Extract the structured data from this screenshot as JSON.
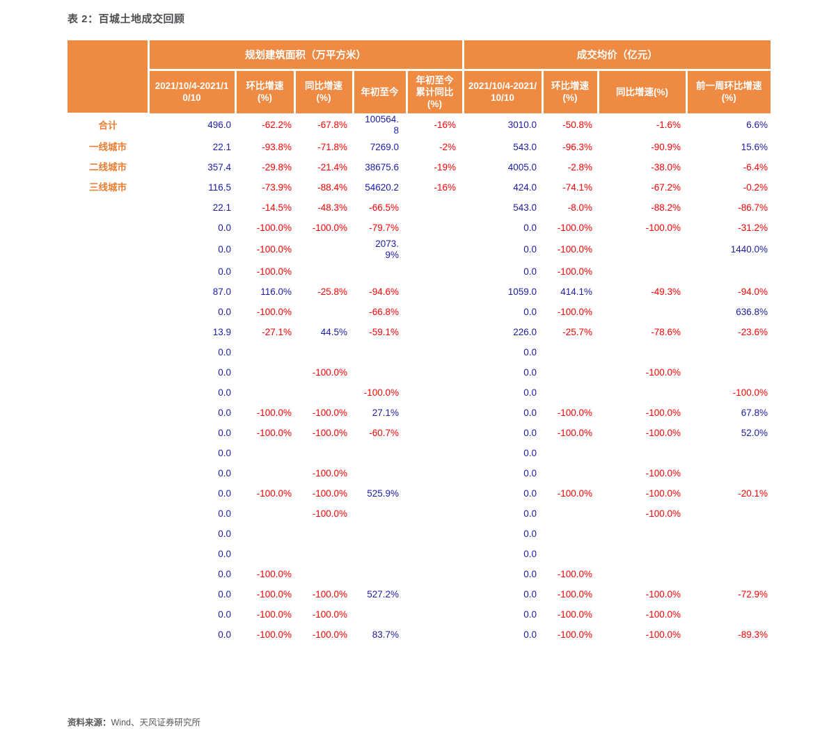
{
  "page": {
    "title": "表 2：百城土地成交回顾",
    "source_label": "资料来源：",
    "source_value": "Wind、天风证券研究所"
  },
  "colors": {
    "header_bg": "#ef8a43",
    "row_label_orange": "#ed7d31",
    "positive_blue": "#1b1ba8",
    "negative_red": "#ff0000",
    "title_gray": "#4d4d52",
    "source_gray": "#595959"
  },
  "table": {
    "col_groups": [
      {
        "label": "规划建筑面积（万平方米）",
        "span": 5
      },
      {
        "label": "成交均价（亿元）",
        "span": 4
      }
    ],
    "sub_headers": [
      "2021/10/4-2021/10/10",
      "环比增速(%)",
      "同比增速(%)",
      "年初至今",
      "年初至今累计同比(%)",
      "2021/10/4-2021/10/10",
      "环比增速(%)",
      "同比增速(%)",
      "前一周环比增速(%)"
    ],
    "rows": [
      {
        "label": "合计",
        "values": [
          "496.0",
          "-62.2%",
          "-67.8%",
          "100564.8",
          "-16%",
          "3010.0",
          "-50.8%",
          "-1.6%",
          "6.6%"
        ]
      },
      {
        "label": "一线城市",
        "values": [
          "22.1",
          "-93.8%",
          "-71.8%",
          "7269.0",
          "-2%",
          "543.0",
          "-96.3%",
          "-90.9%",
          "15.6%"
        ]
      },
      {
        "label": "二线城市",
        "values": [
          "357.4",
          "-29.8%",
          "-21.4%",
          "38675.6",
          "-19%",
          "4005.0",
          "-2.8%",
          "-38.0%",
          "-6.4%"
        ]
      },
      {
        "label": "三线城市",
        "values": [
          "116.5",
          "-73.9%",
          "-88.4%",
          "54620.2",
          "-16%",
          "424.0",
          "-74.1%",
          "-67.2%",
          "-0.2%"
        ]
      },
      {
        "label": "",
        "values": [
          "22.1",
          "-14.5%",
          "-48.3%",
          "-66.5%",
          "",
          "543.0",
          "-8.0%",
          "-88.2%",
          "-86.7%"
        ]
      },
      {
        "label": "",
        "values": [
          "0.0",
          "-100.0%",
          "-100.0%",
          "-79.7%",
          "",
          "0.0",
          "-100.0%",
          "-100.0%",
          "-31.2%"
        ]
      },
      {
        "label": "",
        "values": [
          "0.0",
          "-100.0%",
          "",
          "2073.9%",
          "",
          "0.0",
          "-100.0%",
          "",
          "1440.0%"
        ]
      },
      {
        "label": "",
        "values": [
          "0.0",
          "-100.0%",
          "",
          "",
          "",
          "0.0",
          "-100.0%",
          "",
          ""
        ]
      },
      {
        "label": "",
        "values": [
          "87.0",
          "116.0%",
          "-25.8%",
          "-94.6%",
          "",
          "1059.0",
          "414.1%",
          "-49.3%",
          "-94.0%"
        ]
      },
      {
        "label": "",
        "values": [
          "0.0",
          "-100.0%",
          "",
          "-66.8%",
          "",
          "0.0",
          "-100.0%",
          "",
          "636.8%"
        ]
      },
      {
        "label": "",
        "values": [
          "13.9",
          "-27.1%",
          "44.5%",
          "-59.1%",
          "",
          "226.0",
          "-25.7%",
          "-78.6%",
          "-23.6%"
        ]
      },
      {
        "label": "",
        "values": [
          "0.0",
          "",
          "",
          "",
          "",
          "0.0",
          "",
          "",
          ""
        ]
      },
      {
        "label": "",
        "values": [
          "0.0",
          "",
          "-100.0%",
          "",
          "",
          "0.0",
          "",
          "-100.0%",
          ""
        ]
      },
      {
        "label": "",
        "values": [
          "0.0",
          "",
          "",
          "-100.0%",
          "",
          "0.0",
          "",
          "",
          "-100.0%"
        ]
      },
      {
        "label": "",
        "values": [
          "0.0",
          "-100.0%",
          "-100.0%",
          "27.1%",
          "",
          "0.0",
          "-100.0%",
          "-100.0%",
          "67.8%"
        ]
      },
      {
        "label": "",
        "values": [
          "0.0",
          "-100.0%",
          "-100.0%",
          "-60.7%",
          "",
          "0.0",
          "-100.0%",
          "-100.0%",
          "52.0%"
        ]
      },
      {
        "label": "",
        "values": [
          "0.0",
          "",
          "",
          "",
          "",
          "0.0",
          "",
          "",
          ""
        ]
      },
      {
        "label": "",
        "values": [
          "0.0",
          "",
          "-100.0%",
          "",
          "",
          "0.0",
          "",
          "-100.0%",
          ""
        ]
      },
      {
        "label": "",
        "values": [
          "0.0",
          "-100.0%",
          "-100.0%",
          "525.9%",
          "",
          "0.0",
          "-100.0%",
          "-100.0%",
          "-20.1%"
        ]
      },
      {
        "label": "",
        "values": [
          "0.0",
          "",
          "-100.0%",
          "",
          "",
          "0.0",
          "",
          "-100.0%",
          ""
        ]
      },
      {
        "label": "",
        "values": [
          "0.0",
          "",
          "",
          "",
          "",
          "0.0",
          "",
          "",
          ""
        ]
      },
      {
        "label": "",
        "values": [
          "0.0",
          "",
          "",
          "",
          "",
          "0.0",
          "",
          "",
          ""
        ]
      },
      {
        "label": "",
        "values": [
          "0.0",
          "-100.0%",
          "",
          "",
          "",
          "0.0",
          "-100.0%",
          "",
          ""
        ]
      },
      {
        "label": "",
        "values": [
          "0.0",
          "-100.0%",
          "-100.0%",
          "527.2%",
          "",
          "0.0",
          "-100.0%",
          "-100.0%",
          "-72.9%"
        ]
      },
      {
        "label": "",
        "values": [
          "0.0",
          "-100.0%",
          "-100.0%",
          "",
          "",
          "0.0",
          "-100.0%",
          "-100.0%",
          ""
        ]
      },
      {
        "label": "",
        "values": [
          "0.0",
          "-100.0%",
          "-100.0%",
          "83.7%",
          "",
          "0.0",
          "-100.0%",
          "-100.0%",
          "-89.3%"
        ]
      }
    ]
  }
}
